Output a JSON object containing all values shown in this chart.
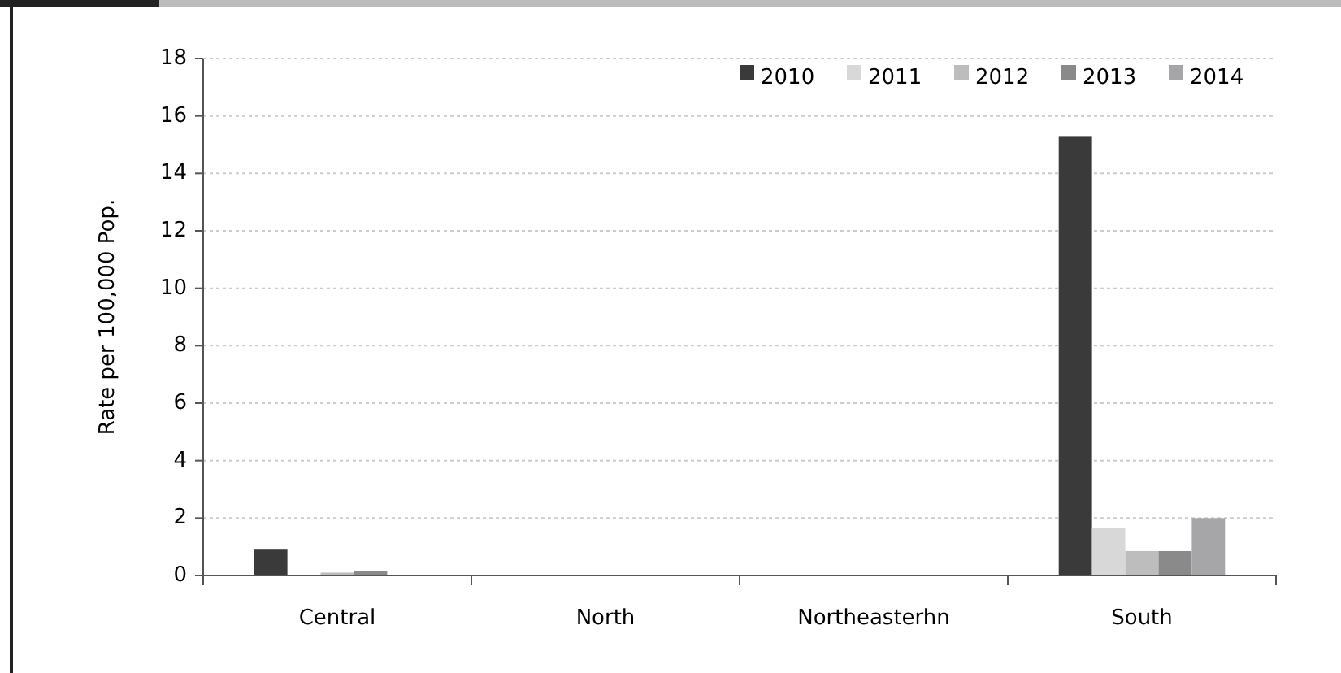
{
  "chart_data": {
    "type": "bar",
    "ylabel": "Rate per 100,000 Pop.",
    "categories": [
      "Central",
      "North",
      "Northeasterhn",
      "South"
    ],
    "series": [
      {
        "name": "2010",
        "color": "#3a3a3a",
        "values": [
          0.9,
          0,
          0,
          15.3
        ]
      },
      {
        "name": "2011",
        "color": "#d8d8d8",
        "values": [
          0,
          0,
          0,
          1.65
        ]
      },
      {
        "name": "2012",
        "color": "#bdbdbd",
        "values": [
          0.1,
          0,
          0,
          0.85
        ]
      },
      {
        "name": "2013",
        "color": "#8a8a8a",
        "values": [
          0.15,
          0,
          0,
          0.85
        ]
      },
      {
        "name": "2014",
        "color": "#a6a6a8",
        "values": [
          0,
          0,
          0,
          2
        ]
      }
    ],
    "ylim": [
      0,
      18
    ],
    "yticks": [
      0,
      2,
      4,
      6,
      8,
      10,
      12,
      14,
      16,
      18
    ],
    "grid": "y",
    "legend": "top right"
  }
}
